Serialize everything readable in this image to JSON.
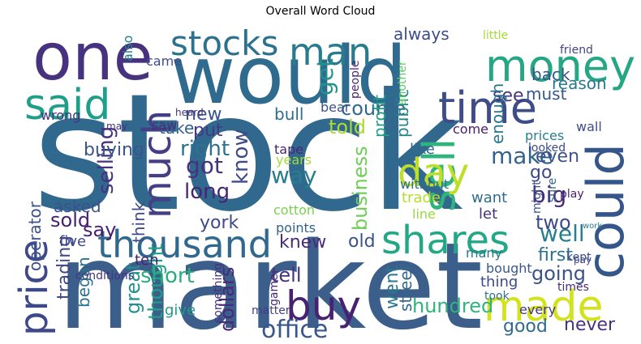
{
  "title": "Overall Word Cloud",
  "colors": {
    "background": "#ffffff",
    "title_text": "#000000"
  },
  "words": [
    {
      "text": "stock",
      "color": "#31688e"
    },
    {
      "text": "market",
      "color": "#3b5f8a"
    },
    {
      "text": "would",
      "color": "#2f6b8e"
    },
    {
      "text": "one",
      "color": "#46327e"
    },
    {
      "text": "money",
      "color": "#26a784"
    },
    {
      "text": "could",
      "color": "#35568b"
    },
    {
      "text": "time",
      "color": "#3e4c8a"
    },
    {
      "text": "thousand",
      "color": "#31688e"
    },
    {
      "text": "said",
      "color": "#1f9e89"
    },
    {
      "text": "sell",
      "color": "#2fb47c"
    },
    {
      "text": "day",
      "color": "#bddf26"
    },
    {
      "text": "man",
      "color": "#287c8e"
    },
    {
      "text": "stocks",
      "color": "#2c728e"
    },
    {
      "text": "much",
      "color": "#433e85"
    },
    {
      "text": "shares",
      "color": "#22a884"
    },
    {
      "text": "made",
      "color": "#d2e21b"
    },
    {
      "text": "buy",
      "color": "#482173"
    },
    {
      "text": "price",
      "color": "#3e4989"
    },
    {
      "text": "get",
      "color": "#21918c"
    },
    {
      "text": "always",
      "color": "#3e4c8a"
    },
    {
      "text": "course",
      "color": "#31688e"
    },
    {
      "text": "told",
      "color": "#addc30"
    },
    {
      "text": "see",
      "color": "#46337f"
    },
    {
      "text": "back",
      "color": "#3b528b"
    },
    {
      "text": "must",
      "color": "#38588c"
    },
    {
      "text": "reason",
      "color": "#2a788e"
    },
    {
      "text": "public",
      "color": "#25858e"
    },
    {
      "text": "profit",
      "color": "#1fa088"
    },
    {
      "text": "another",
      "color": "#5ec962"
    },
    {
      "text": "take",
      "color": "#33638d"
    },
    {
      "text": "came",
      "color": "#3e4c8a"
    },
    {
      "text": "also",
      "color": "#26818e"
    },
    {
      "text": "wrong",
      "color": "#46327e"
    },
    {
      "text": "may",
      "color": "#46337f"
    },
    {
      "text": "people",
      "color": "#482374"
    },
    {
      "text": "friend",
      "color": "#414487"
    },
    {
      "text": "little",
      "color": "#a5db36"
    },
    {
      "text": "new",
      "color": "#3b528b"
    },
    {
      "text": "bull",
      "color": "#2f6c8e"
    },
    {
      "text": "got",
      "color": "#46327e"
    },
    {
      "text": "right",
      "color": "#2c728e"
    },
    {
      "text": "way",
      "color": "#287d8e"
    },
    {
      "text": "know",
      "color": "#3e4a89"
    },
    {
      "text": "long",
      "color": "#482475"
    },
    {
      "text": "selling",
      "color": "#46327e"
    },
    {
      "text": "buying",
      "color": "#39568c"
    },
    {
      "text": "sold",
      "color": "#481f70"
    },
    {
      "text": "operator",
      "color": "#3b528b"
    },
    {
      "text": "trading",
      "color": "#3f4788"
    },
    {
      "text": "business",
      "color": "#6ece58"
    },
    {
      "text": "tape",
      "color": "#482576"
    },
    {
      "text": "years",
      "color": "#a0da39"
    },
    {
      "text": "cotton",
      "color": "#7ad151"
    },
    {
      "text": "make",
      "color": "#33638d"
    },
    {
      "text": "even",
      "color": "#3b528b"
    },
    {
      "text": "enough",
      "color": "#2a788e"
    },
    {
      "text": "like",
      "color": "#31688e"
    },
    {
      "text": "big",
      "color": "#472c7a"
    },
    {
      "text": "go",
      "color": "#3f4788"
    },
    {
      "text": "well",
      "color": "#277f8e"
    },
    {
      "text": "two",
      "color": "#3e4989"
    },
    {
      "text": "first",
      "color": "#2c728e"
    },
    {
      "text": "going",
      "color": "#3b528b"
    },
    {
      "text": "never",
      "color": "#46327e"
    },
    {
      "text": "good",
      "color": "#306a8e"
    },
    {
      "text": "hundred",
      "color": "#2fb47c"
    },
    {
      "text": "office",
      "color": "#38588c"
    },
    {
      "text": "dollars",
      "color": "#482878"
    },
    {
      "text": "thought",
      "color": "#1fa088"
    },
    {
      "text": "short",
      "color": "#29af7f"
    },
    {
      "text": "old",
      "color": "#3b528b"
    },
    {
      "text": "knew",
      "color": "#472c7a"
    },
    {
      "text": "tell",
      "color": "#46327e"
    },
    {
      "text": "went",
      "color": "#2a788e"
    },
    {
      "text": "street",
      "color": "#31688e"
    },
    {
      "text": "trade",
      "color": "#b5de2b"
    },
    {
      "text": "york",
      "color": "#3e4989"
    },
    {
      "text": "say",
      "color": "#481f70"
    },
    {
      "text": "asked",
      "color": "#3b528b"
    },
    {
      "text": "began",
      "color": "#2c728e"
    },
    {
      "text": "great",
      "color": "#21918c"
    },
    {
      "text": "think",
      "color": "#3e4a89"
    },
    {
      "text": "put",
      "color": "#443a83"
    },
    {
      "text": "saw",
      "color": "#472d7b"
    },
    {
      "text": "come",
      "color": "#481b6d"
    },
    {
      "text": "wall",
      "color": "#3d4e8a"
    },
    {
      "text": "prices",
      "color": "#277f8e"
    },
    {
      "text": "looked",
      "color": "#3e4989"
    },
    {
      "text": "sure",
      "color": "#33638d"
    },
    {
      "text": "play",
      "color": "#482173"
    },
    {
      "text": "might",
      "color": "#3b528b"
    },
    {
      "text": "want",
      "color": "#2f6c8e"
    },
    {
      "text": "let",
      "color": "#46327e"
    },
    {
      "text": "thing",
      "color": "#3e4989"
    },
    {
      "text": "bought",
      "color": "#38588c"
    },
    {
      "text": "kept",
      "color": "#3e4a89"
    },
    {
      "text": "took",
      "color": "#2c728e"
    },
    {
      "text": "times",
      "color": "#472c7a"
    },
    {
      "text": "every",
      "color": "#453781"
    },
    {
      "text": "many",
      "color": "#2a788e"
    },
    {
      "text": "without",
      "color": "#2e6e8e"
    },
    {
      "text": "points",
      "color": "#33638d"
    },
    {
      "text": "ten",
      "color": "#482173"
    },
    {
      "text": "give",
      "color": "#1f9a8a"
    },
    {
      "text": "five",
      "color": "#3f4788"
    },
    {
      "text": "conditions",
      "color": "#46327e"
    },
    {
      "text": "something",
      "color": "#46337f"
    },
    {
      "text": "matter",
      "color": "#433e85"
    },
    {
      "text": "line",
      "color": "#98d83e"
    },
    {
      "text": "heard",
      "color": "#46327e"
    },
    {
      "text": "game",
      "color": "#482878"
    },
    {
      "text": "bear",
      "color": "#3b528b"
    },
    {
      "text": "pay",
      "color": "#3e4989"
    },
    {
      "text": "work",
      "color": "#2a788e"
    }
  ]
}
